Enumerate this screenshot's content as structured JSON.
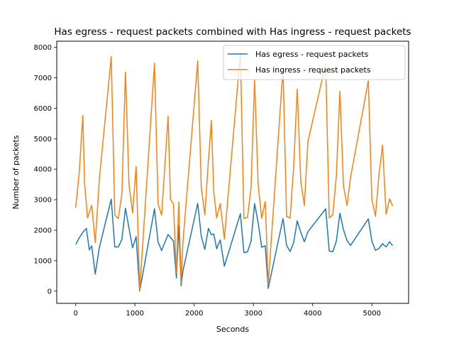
{
  "chart_data": {
    "type": "line",
    "title": "Has egress - request packets combined with Has ingress - request packets",
    "xlabel": "Seconds",
    "ylabel": "Number of packets",
    "xlim": [
      -320,
      5620
    ],
    "ylim": [
      -400,
      8200
    ],
    "xticks": [
      0,
      1000,
      2000,
      3000,
      4000,
      5000
    ],
    "yticks": [
      0,
      1000,
      2000,
      3000,
      4000,
      5000,
      6000,
      7000,
      8000
    ],
    "grid": false,
    "legend_position": "top-right",
    "series": [
      {
        "name": "Has egress - request packets",
        "color": "#1f77b4",
        "x": [
          0,
          60,
          120,
          180,
          230,
          270,
          330,
          400,
          600,
          660,
          720,
          780,
          840,
          900,
          960,
          1020,
          1080,
          1330,
          1390,
          1450,
          1560,
          1650,
          1700,
          1740,
          1780,
          1810,
          2060,
          2120,
          2180,
          2240,
          2290,
          2330,
          2380,
          2440,
          2510,
          2780,
          2840,
          2900,
          2960,
          3020,
          3080,
          3140,
          3200,
          3250,
          3500,
          3560,
          3620,
          3680,
          3740,
          3800,
          3860,
          3920,
          4220,
          4280,
          4340,
          4400,
          4460,
          4520,
          4580,
          4640,
          4940,
          5000,
          5060,
          5120,
          5180,
          5240,
          5300,
          5350
        ],
        "y": [
          1530,
          1750,
          1930,
          2060,
          1350,
          1490,
          560,
          1440,
          3020,
          1450,
          1450,
          1700,
          2720,
          2060,
          1420,
          1790,
          0,
          2700,
          1620,
          1330,
          1860,
          1640,
          430,
          2160,
          180,
          660,
          2880,
          1800,
          1370,
          2060,
          1850,
          1880,
          1390,
          1680,
          820,
          2540,
          1260,
          1290,
          1640,
          2870,
          2250,
          1440,
          1490,
          90,
          2380,
          1500,
          1300,
          1600,
          2310,
          1930,
          1620,
          1950,
          2700,
          1320,
          1290,
          1640,
          2560,
          2020,
          1660,
          1500,
          2370,
          1640,
          1340,
          1400,
          1560,
          1450,
          1620,
          1490
        ]
      },
      {
        "name": "Has ingress - request packets",
        "color": "#ff7f0e",
        "x": [
          0,
          60,
          120,
          150,
          200,
          270,
          330,
          400,
          600,
          660,
          720,
          780,
          840,
          900,
          960,
          1020,
          1080,
          1330,
          1390,
          1450,
          1560,
          1600,
          1650,
          1700,
          1740,
          1780,
          1810,
          2060,
          2120,
          2180,
          2240,
          2290,
          2330,
          2380,
          2440,
          2510,
          2780,
          2840,
          2900,
          2960,
          3020,
          3080,
          3140,
          3200,
          3250,
          3500,
          3560,
          3620,
          3680,
          3740,
          3800,
          3860,
          3920,
          4220,
          4280,
          4340,
          4400,
          4460,
          4520,
          4580,
          4640,
          4940,
          5000,
          5060,
          5120,
          5180,
          5240,
          5300,
          5350
        ],
        "y": [
          2740,
          3900,
          5760,
          3530,
          2400,
          2820,
          1590,
          3700,
          7690,
          2490,
          2380,
          3200,
          7190,
          3500,
          2560,
          4090,
          0,
          7480,
          2870,
          2490,
          5740,
          3010,
          2860,
          580,
          2930,
          280,
          1600,
          7550,
          3400,
          2500,
          4250,
          5600,
          3260,
          2400,
          2870,
          1710,
          7800,
          2380,
          2420,
          3400,
          6930,
          3500,
          2390,
          2940,
          210,
          7300,
          2440,
          2400,
          4100,
          6630,
          3600,
          2810,
          4900,
          7460,
          2400,
          2500,
          3780,
          6560,
          3470,
          2810,
          3730,
          6900,
          3000,
          2460,
          3820,
          4790,
          2530,
          3030,
          2790
        ]
      }
    ]
  }
}
